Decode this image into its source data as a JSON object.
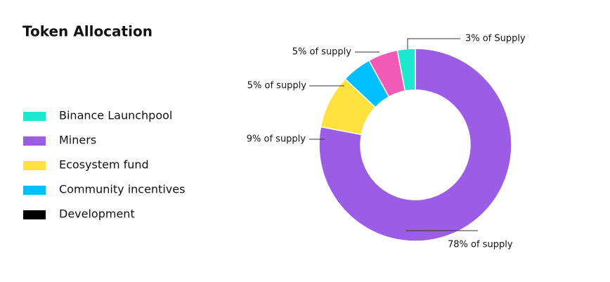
{
  "chart_data": {
    "type": "donut",
    "title": "Token Allocation",
    "categories": [
      "Binance Launchpool",
      "Miners",
      "Ecosystem fund",
      "Community incentives",
      "Development"
    ],
    "values": [
      3,
      78,
      9,
      5,
      5
    ],
    "value_labels": [
      "3% of Supply",
      "78% of supply",
      "9% of supply",
      "5% of supply",
      "5% of supply"
    ],
    "colors": [
      "#1de9d0",
      "#9b5de5",
      "#fde23e",
      "#00bfff",
      "#f15bb5"
    ],
    "legend_colors": [
      "#1de9d0",
      "#9b5de5",
      "#fde23e",
      "#00bfff",
      "#000000"
    ]
  }
}
